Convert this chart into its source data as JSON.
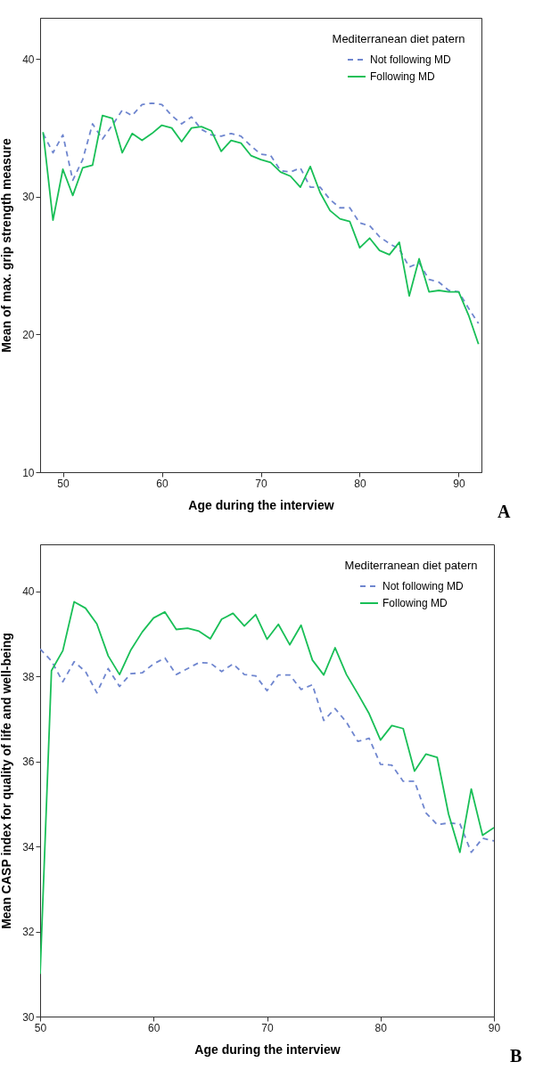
{
  "chart_data": [
    {
      "type": "line",
      "xlabel": "Age during the interview",
      "ylabel": "Mean of max. grip strength measure",
      "legend_title": "Mediterranean diet patern",
      "legend": "top right",
      "grid": false,
      "marker": "none",
      "annotations": [
        "A"
      ],
      "x": [
        48,
        49,
        50,
        51,
        52,
        53,
        54,
        55,
        56,
        57,
        58,
        59,
        60,
        61,
        62,
        63,
        64,
        65,
        66,
        67,
        68,
        69,
        70,
        71,
        72,
        73,
        74,
        75,
        76,
        77,
        78,
        79,
        80,
        81,
        82,
        83,
        84,
        85,
        86,
        87,
        88,
        89,
        90,
        91,
        92
      ],
      "xlim": [
        47.7,
        92.3
      ],
      "xticks": [
        50,
        60,
        70,
        80,
        90
      ],
      "ylim": [
        10,
        43
      ],
      "yticks": [
        10,
        20,
        30,
        40
      ],
      "series": [
        {
          "name": "Not following MD",
          "color": "#6f86cf",
          "line_style": "dashed",
          "values": [
            34.6,
            33.2,
            34.5,
            31.2,
            32.7,
            35.3,
            34.2,
            35.2,
            36.3,
            35.9,
            36.7,
            36.8,
            36.7,
            35.9,
            35.3,
            35.8,
            34.9,
            34.5,
            34.4,
            34.6,
            34.4,
            33.7,
            33.1,
            33.0,
            31.9,
            31.8,
            32.1,
            30.7,
            30.7,
            29.8,
            29.2,
            29.2,
            28.1,
            27.9,
            27.1,
            26.6,
            26.2,
            24.9,
            25.2,
            24.0,
            23.8,
            23.2,
            23.1,
            21.9,
            20.8
          ]
        },
        {
          "name": "Following MD",
          "color": "#19bf57",
          "line_style": "solid",
          "values": [
            34.7,
            28.3,
            32.0,
            30.1,
            32.1,
            32.3,
            35.9,
            35.7,
            33.2,
            34.6,
            34.1,
            34.6,
            35.2,
            35.0,
            34.0,
            35.0,
            35.1,
            34.8,
            33.3,
            34.1,
            33.9,
            33.0,
            32.7,
            32.5,
            31.8,
            31.5,
            30.7,
            32.2,
            30.3,
            29.0,
            28.4,
            28.2,
            26.3,
            27.0,
            26.1,
            25.8,
            26.7,
            22.8,
            25.5,
            23.1,
            23.2,
            23.1,
            23.1,
            21.4,
            19.3
          ]
        }
      ]
    },
    {
      "type": "line",
      "xlabel": "Age during the interview",
      "ylabel": "Mean CASP index for quality of life and well-being",
      "legend_title": "Mediterranean diet patern",
      "legend": "top right",
      "grid": false,
      "marker": "none",
      "annotations": [
        "B"
      ],
      "x": [
        50,
        51,
        52,
        53,
        54,
        55,
        56,
        57,
        58,
        59,
        60,
        61,
        62,
        63,
        64,
        65,
        66,
        67,
        68,
        69,
        70,
        71,
        72,
        73,
        74,
        75,
        76,
        77,
        78,
        79,
        80,
        81,
        82,
        83,
        84,
        85,
        86,
        87,
        88,
        89,
        90
      ],
      "xlim": [
        50,
        90
      ],
      "xticks": [
        50,
        60,
        70,
        80,
        90
      ],
      "ylim": [
        30,
        41.1
      ],
      "yticks": [
        30,
        32,
        34,
        36,
        38,
        40
      ],
      "series": [
        {
          "name": "Not following MD",
          "color": "#6f86cf",
          "line_style": "dashed",
          "values": [
            38.64,
            38.36,
            37.87,
            38.34,
            38.11,
            37.61,
            38.18,
            37.76,
            38.06,
            38.08,
            38.29,
            38.43,
            38.04,
            38.18,
            38.32,
            38.31,
            38.11,
            38.29,
            38.04,
            38.01,
            37.66,
            38.03,
            38.03,
            37.69,
            37.8,
            36.96,
            37.24,
            36.92,
            36.47,
            36.54,
            35.93,
            35.91,
            35.53,
            35.53,
            34.79,
            34.51,
            34.55,
            34.53,
            33.86,
            34.19,
            34.13
          ]
        },
        {
          "name": "Following MD",
          "color": "#19bf57",
          "line_style": "solid",
          "values": [
            31.0,
            38.13,
            38.6,
            39.75,
            39.6,
            39.23,
            38.48,
            38.04,
            38.62,
            39.04,
            39.37,
            39.51,
            39.1,
            39.13,
            39.06,
            38.88,
            39.34,
            39.48,
            39.18,
            39.45,
            38.87,
            39.22,
            38.74,
            39.2,
            38.38,
            38.03,
            38.67,
            38.04,
            37.59,
            37.12,
            36.5,
            36.84,
            36.77,
            35.77,
            36.17,
            36.09,
            34.76,
            33.86,
            35.35,
            34.26,
            34.44
          ]
        }
      ]
    }
  ]
}
